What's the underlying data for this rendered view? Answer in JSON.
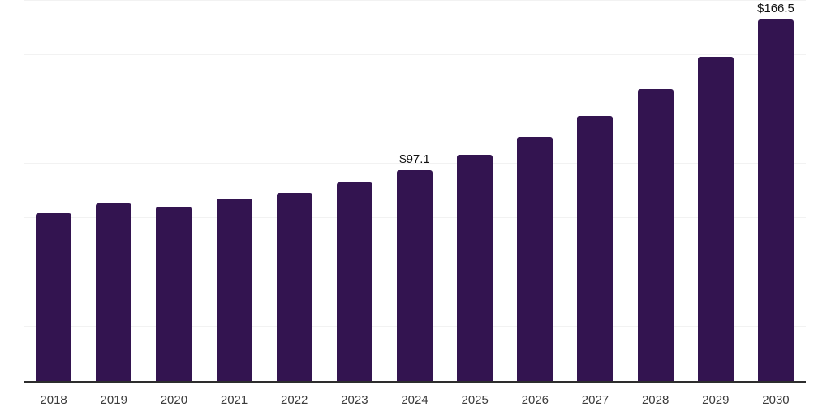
{
  "chart_data": {
    "type": "bar",
    "title": "",
    "xlabel": "",
    "ylabel": "",
    "categories": [
      "2018",
      "2019",
      "2020",
      "2021",
      "2022",
      "2023",
      "2024",
      "2025",
      "2026",
      "2027",
      "2028",
      "2029",
      "2030"
    ],
    "values": [
      77.4,
      81.7,
      80.4,
      83.9,
      86.6,
      91.3,
      97.1,
      104.1,
      112.2,
      122.1,
      134.5,
      149.1,
      166.5
    ],
    "data_labels": {
      "2024": "$97.1",
      "2030": "$166.5"
    },
    "ylim": [
      0,
      175
    ],
    "gridline_step": 25,
    "y_axis_labels_visible": false,
    "legend_position": "none",
    "grid": "horizontal"
  },
  "style": {
    "bar_color": "#331450",
    "axis_color": "#2d2d2d",
    "gridline_color": "#f2f2f2",
    "tick_label_color": "#3b3b3b",
    "data_label_color": "#111111",
    "background_color": "#ffffff"
  }
}
